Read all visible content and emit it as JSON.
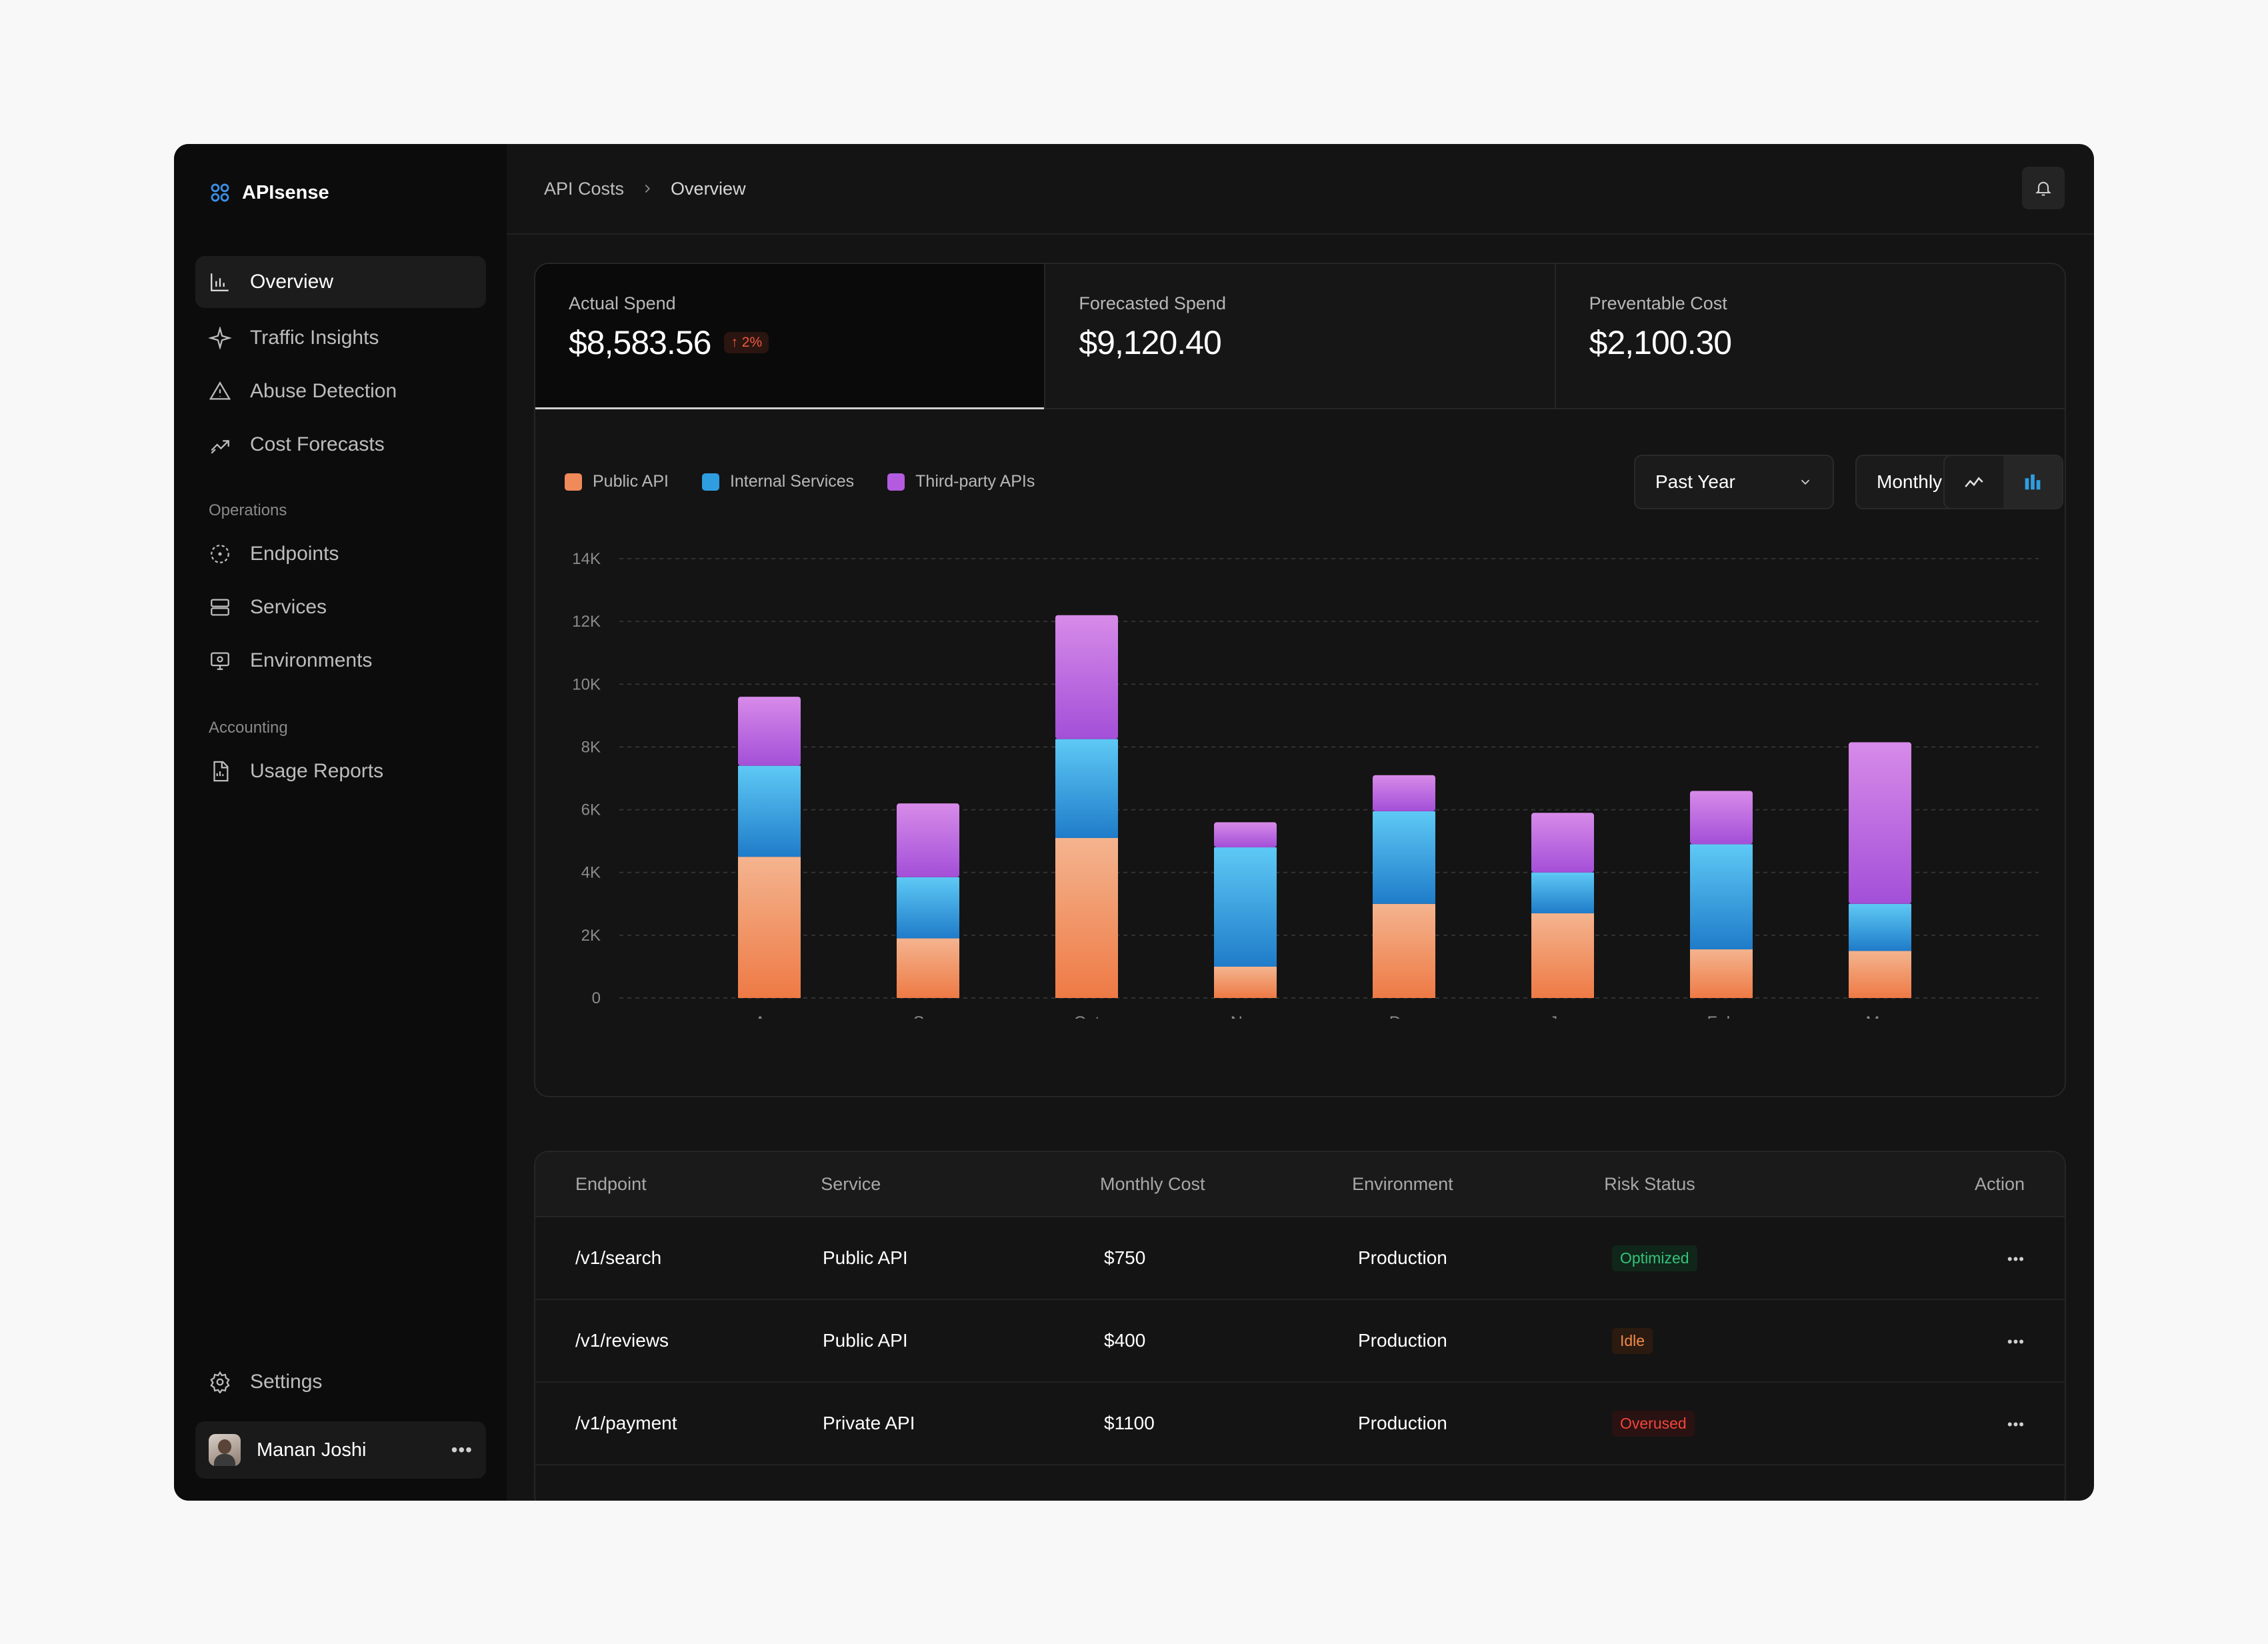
{
  "app": {
    "name": "APIsense"
  },
  "sidebar": {
    "items": [
      {
        "label": "Overview"
      },
      {
        "label": "Traffic Insights"
      },
      {
        "label": "Abuse Detection"
      },
      {
        "label": "Cost Forecasts"
      }
    ],
    "operations_title": "Operations",
    "operations": [
      {
        "label": "Endpoints"
      },
      {
        "label": "Services"
      },
      {
        "label": "Environments"
      }
    ],
    "accounting_title": "Accounting",
    "accounting": [
      {
        "label": "Usage Reports"
      }
    ],
    "settings_label": "Settings",
    "user": {
      "name": "Manan Joshi"
    }
  },
  "breadcrumb": {
    "parent": "API Costs",
    "current": "Overview"
  },
  "kpis": [
    {
      "label": "Actual Spend",
      "value": "$8,583.56",
      "delta": "2%"
    },
    {
      "label": "Forecasted Spend",
      "value": "$9,120.40"
    },
    {
      "label": "Preventable Cost",
      "value": "$2,100.30"
    }
  ],
  "filters": {
    "range": "Past Year",
    "granularity": "Monthly"
  },
  "colors": {
    "public": "#f08a5a",
    "internal": "#2f9ee0",
    "thirdparty": "#b45be0",
    "optimized": "#35c27a",
    "idle": "#f08a4a",
    "overused": "#f0453a"
  },
  "chart_data": {
    "type": "bar",
    "stacked": true,
    "categories": [
      "Aug",
      "Sep",
      "Oct",
      "Nov",
      "Dec",
      "Jan",
      "Feb",
      "Mar"
    ],
    "series": [
      {
        "name": "Public API",
        "values": [
          4500,
          1900,
          5100,
          1000,
          3000,
          2700,
          1550,
          1500
        ]
      },
      {
        "name": "Internal Services",
        "values": [
          2900,
          1950,
          3150,
          3800,
          2950,
          1300,
          3350,
          1500
        ]
      },
      {
        "name": "Third-party APIs",
        "values": [
          2200,
          2350,
          3950,
          800,
          1150,
          1900,
          1700,
          5150
        ]
      }
    ],
    "ylim": [
      0,
      14000
    ],
    "yticks": [
      "0",
      "2K",
      "4K",
      "6K",
      "8K",
      "10K",
      "12K",
      "14K"
    ],
    "grid": true,
    "legend": "top-left"
  },
  "table": {
    "headers": [
      "Endpoint",
      "Service",
      "Monthly Cost",
      "Environment",
      "Risk Status",
      "Action"
    ],
    "rows": [
      {
        "endpoint": "/v1/search",
        "service": "Public API",
        "cost": "$750",
        "env": "Production",
        "status": "Optimized",
        "kind": "optimized"
      },
      {
        "endpoint": "/v1/reviews",
        "service": "Public API",
        "cost": "$400",
        "env": "Production",
        "status": "Idle",
        "kind": "idle"
      },
      {
        "endpoint": "/v1/payment",
        "service": "Private API",
        "cost": "$1100",
        "env": "Production",
        "status": "Overused",
        "kind": "overused"
      }
    ]
  }
}
